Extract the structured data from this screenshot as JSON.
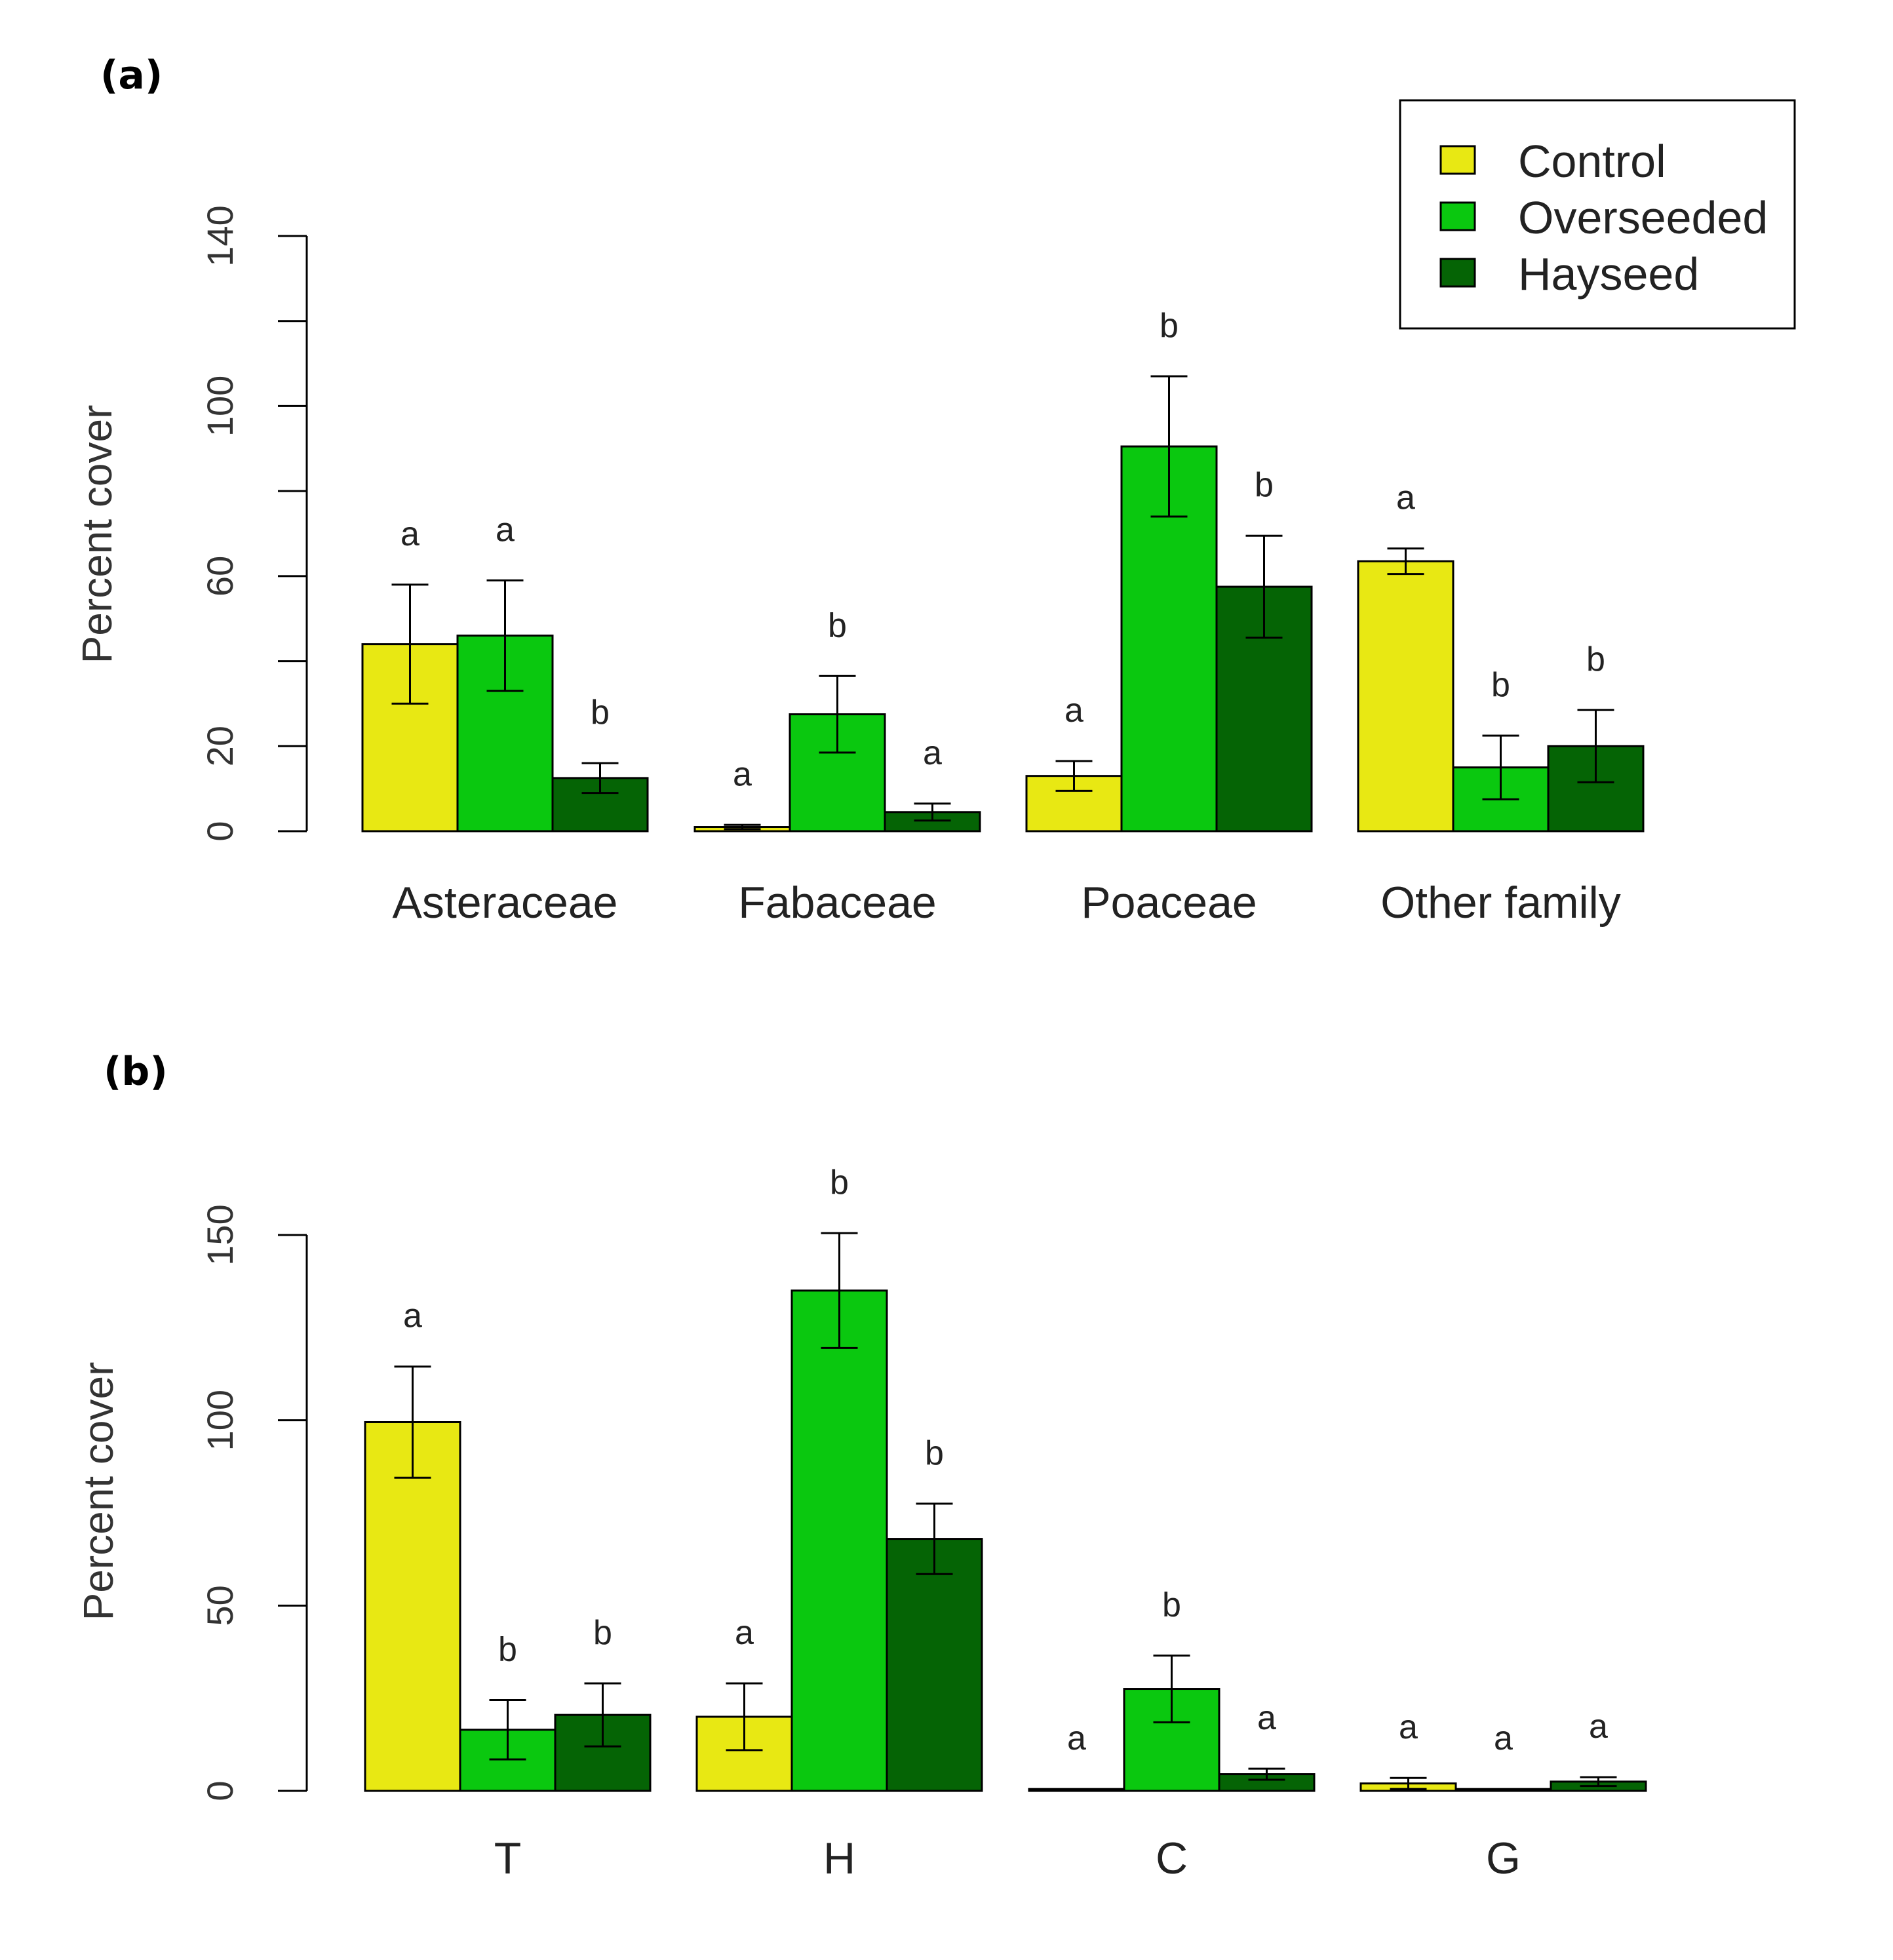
{
  "legend": {
    "entries": [
      {
        "label": "Control",
        "color": "#e8e813"
      },
      {
        "label": "Overseeded",
        "color": "#0ac80f"
      },
      {
        "label": "Hayseed",
        "color": "#056405"
      }
    ]
  },
  "chart_data": [
    {
      "type": "bar",
      "panel_label": "(a)",
      "ylabel": "Percent cover",
      "ylim": [
        0,
        140
      ],
      "yticks": [
        "0",
        "20",
        "60",
        "100",
        "140"
      ],
      "ytick_values": [
        0,
        20,
        60,
        100,
        140
      ],
      "minor_ticks": [
        0,
        20,
        40,
        60,
        80,
        100,
        120,
        140
      ],
      "categories": [
        "Asteraceae",
        "Fabaceae",
        "Poaceae",
        "Other family"
      ],
      "series": [
        {
          "name": "Control",
          "values": [
            44,
            1,
            13,
            63.5
          ],
          "errors": [
            14,
            0.5,
            3.5,
            3
          ],
          "letters": [
            "a",
            "a",
            "a",
            "a"
          ]
        },
        {
          "name": "Overseeded",
          "values": [
            46,
            27.5,
            90.5,
            15
          ],
          "errors": [
            13,
            9,
            16.5,
            7.5
          ],
          "letters": [
            "a",
            "b",
            "b",
            "b"
          ]
        },
        {
          "name": "Hayseed",
          "values": [
            12.5,
            4.5,
            57.5,
            20
          ],
          "errors": [
            3.5,
            2,
            12,
            8.5
          ],
          "letters": [
            "b",
            "a",
            "b",
            "b"
          ]
        }
      ]
    },
    {
      "type": "bar",
      "panel_label": "(b)",
      "ylabel": "Percent cover",
      "ylim": [
        0,
        150
      ],
      "yticks": [
        "0",
        "50",
        "100",
        "150"
      ],
      "ytick_values": [
        0,
        50,
        100,
        150
      ],
      "minor_ticks": [
        0,
        50,
        100,
        150
      ],
      "categories": [
        "T",
        "H",
        "C",
        "G"
      ],
      "series": [
        {
          "name": "Control",
          "values": [
            99.5,
            20,
            0.5,
            2
          ],
          "errors": [
            15,
            9,
            0,
            1.5
          ],
          "letters": [
            "a",
            "a",
            "a",
            "a"
          ]
        },
        {
          "name": "Overseeded",
          "values": [
            16.5,
            135,
            27.5,
            0.5
          ],
          "errors": [
            8,
            15.5,
            9,
            0
          ],
          "letters": [
            "b",
            "b",
            "b",
            "a"
          ]
        },
        {
          "name": "Hayseed",
          "values": [
            20.5,
            68,
            4.5,
            2.5
          ],
          "errors": [
            8.5,
            9.5,
            1.5,
            1.2
          ],
          "letters": [
            "b",
            "b",
            "a",
            "a"
          ]
        }
      ]
    }
  ]
}
